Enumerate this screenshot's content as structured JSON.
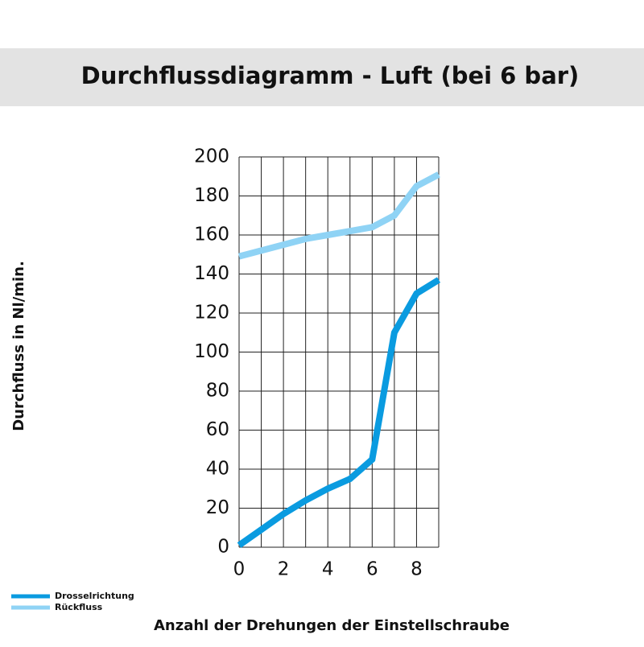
{
  "chart_data": {
    "type": "line",
    "title": "Durchflussdiagramm - Luft (bei 6 bar)",
    "x_label": "Anzahl der Drehungen der Einstellschraube",
    "y_label": "Durchfluss in Nl/min.",
    "x": [
      0,
      1,
      2,
      3,
      4,
      5,
      6,
      7,
      8,
      9
    ],
    "series": [
      {
        "name": "Drosselrichtung",
        "color": "#0a9be0",
        "values": [
          1,
          9,
          17,
          24,
          30,
          35,
          45,
          110,
          130,
          137
        ]
      },
      {
        "name": "Rückfluss",
        "color": "#8fd3f5",
        "values": [
          149,
          152,
          155,
          158,
          160,
          162,
          164,
          170,
          185,
          191
        ]
      }
    ],
    "xlim": [
      0,
      9
    ],
    "xticks": [
      0,
      2,
      4,
      6,
      8
    ],
    "xminor_ticks": [
      1,
      3,
      5,
      7,
      9
    ],
    "ylim": [
      0,
      200
    ],
    "yticks": [
      0,
      20,
      40,
      60,
      80,
      100,
      120,
      140,
      160,
      180,
      200
    ],
    "grid": true,
    "legend": "bottom-left"
  }
}
